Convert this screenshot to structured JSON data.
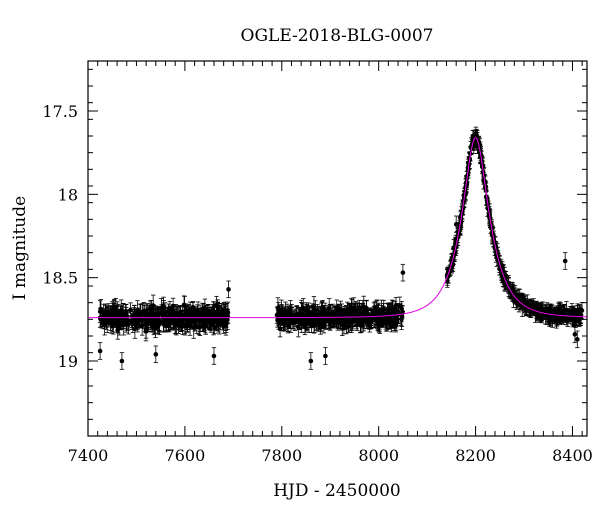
{
  "chart_data": {
    "type": "scatter",
    "title": "OGLE-2018-BLG-0007",
    "xlabel": "HJD - 2450000",
    "ylabel": "I magnitude",
    "xlim": [
      7400,
      8430
    ],
    "ylim": [
      19.45,
      17.2
    ],
    "y_inverted": true,
    "x_ticks": [
      7400,
      7600,
      7800,
      8000,
      8200,
      8400
    ],
    "y_ticks": [
      17.5,
      18,
      18.5,
      19
    ],
    "x_tick_labels": [
      "7400",
      "7600",
      "7800",
      "8000",
      "8200",
      "8400"
    ],
    "y_tick_labels": [
      "17.5",
      "18",
      "18.5",
      "19"
    ],
    "grid": false,
    "legend": "none",
    "series": [
      {
        "kind": "points-with-errorbars",
        "color": "#000000",
        "seasons": [
          {
            "x_start": 7425,
            "x_end": 7690,
            "baseline": 18.74,
            "scatter": 0.05,
            "err": 0.05
          },
          {
            "x_start": 7790,
            "x_end": 8050,
            "baseline": 18.74,
            "scatter": 0.05,
            "err": 0.05
          },
          {
            "x_start": 8140,
            "x_end": 8420,
            "baseline": 18.74,
            "scatter": 0.03,
            "err": 0.04
          }
        ],
        "outliers": [
          {
            "x": 7425,
            "y": 18.94
          },
          {
            "x": 7470,
            "y": 19.0
          },
          {
            "x": 7540,
            "y": 18.96
          },
          {
            "x": 7660,
            "y": 18.97
          },
          {
            "x": 7690,
            "y": 18.57
          },
          {
            "x": 7860,
            "y": 19.0
          },
          {
            "x": 7890,
            "y": 18.97
          },
          {
            "x": 8050,
            "y": 18.47
          },
          {
            "x": 8155,
            "y": 18.32
          },
          {
            "x": 8160,
            "y": 18.18
          },
          {
            "x": 8385,
            "y": 18.4
          },
          {
            "x": 8405,
            "y": 18.84
          },
          {
            "x": 8410,
            "y": 18.87
          }
        ]
      },
      {
        "kind": "model-curve",
        "color": "#e600e6",
        "baseline": 18.74,
        "peak_x": 8200,
        "peak_mag": 17.66,
        "u0": 0.42,
        "tE": 52
      }
    ]
  }
}
